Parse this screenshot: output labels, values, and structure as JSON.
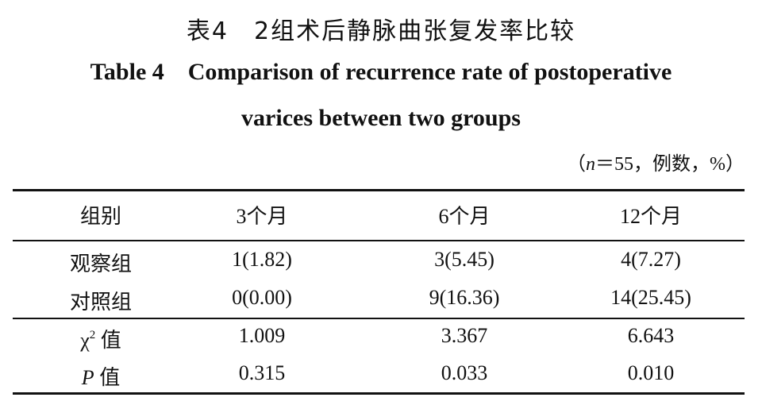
{
  "caption": {
    "cn": "表4　2组术后静脉曲张复发率比较",
    "en_line1": "Table 4    Comparison of recurrence rate of postoperative",
    "en_line2": "varices between two groups",
    "note_prefix": "（",
    "note_n": "n",
    "note_rest": "＝55，例数，%）"
  },
  "table": {
    "headers": [
      "组别",
      "3个月",
      "6个月",
      "12个月"
    ],
    "rows": [
      {
        "label": "观察组",
        "values": [
          "1(1.82)",
          "3(5.45)",
          "4(7.27)"
        ]
      },
      {
        "label": "对照组",
        "values": [
          "0(0.00)",
          "9(16.36)",
          "14(25.45)"
        ]
      }
    ],
    "stats": [
      {
        "label_symbol": "χ",
        "label_sup": "2",
        "label_suffix": " 值",
        "values": [
          "1.009",
          "3.367",
          "6.643"
        ]
      },
      {
        "label_symbol": "P",
        "label_suffix": " 值",
        "values": [
          "0.315",
          "0.033",
          "0.010"
        ]
      }
    ]
  }
}
